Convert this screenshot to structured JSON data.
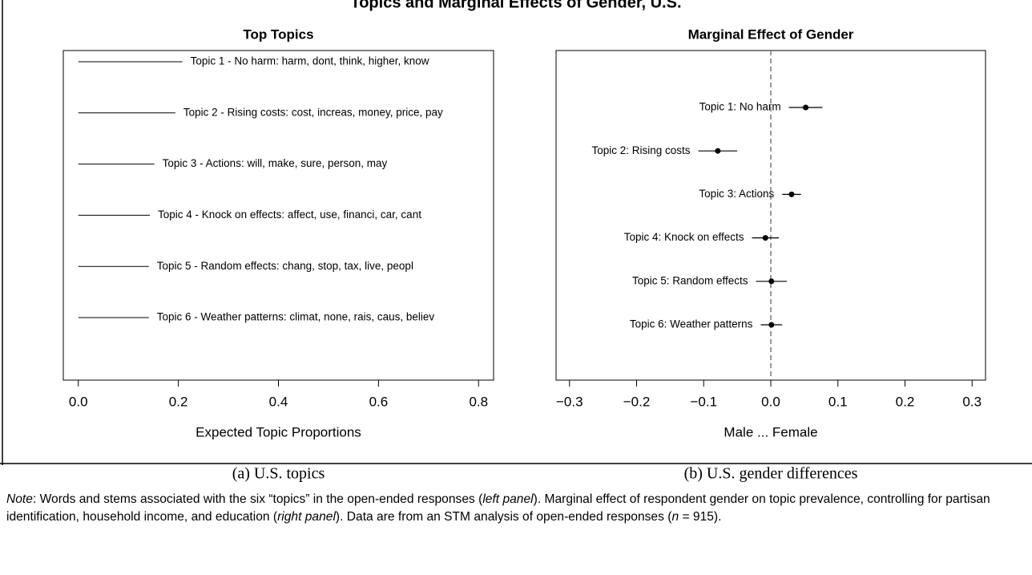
{
  "title": "Topics and Marginal Effects of Gender, U.S.",
  "chart_data": [
    {
      "type": "segment",
      "title": "Top Topics",
      "xlabel": "Expected Topic Proportions",
      "caption": "(a) U.S. topics",
      "categories": [
        "Topic 1 - No harm: harm, dont, think, higher, know",
        "Topic 2 -  Rising costs: cost, increas, money, price, pay",
        "Topic 3 - Actions: will, make, sure, person, may",
        "Topic 4 - Knock on effects: affect, use, financi, car, cant",
        "Topic 5 - Random effects: chang, stop, tax, live, peopl",
        "Topic 6 - Weather patterns: climat, none, rais, caus, believ"
      ],
      "values": [
        0.208,
        0.194,
        0.152,
        0.143,
        0.141,
        0.141
      ],
      "color": "#000000",
      "xlim": [
        -0.03,
        0.83
      ],
      "xticks": [
        {
          "value": 0,
          "label": "0.0"
        },
        0.2,
        0.4,
        0.6,
        0.8
      ]
    },
    {
      "type": "pointrange",
      "title": "Marginal Effect of Gender",
      "xlabel": "Male ... Female",
      "caption": "(b) U.S. gender differences",
      "categories": [
        "Topic 1: No harm",
        "Topic 2: Rising costs",
        "Topic 3: Actions",
        "Topic 4: Knock on effects",
        "Topic 5: Random effects",
        "Topic 6: Weather patterns"
      ],
      "values": [
        0.052,
        -0.079,
        0.031,
        -0.008,
        0.001,
        0.001
      ],
      "errors": [
        0.025,
        0.029,
        0.014,
        0.02,
        0.023,
        0.016
      ],
      "color": "#000000",
      "reference_line": 0,
      "xlim": [
        -0.32,
        0.32
      ],
      "xticks": [
        {
          "value": -0.3,
          "label": "−0.3"
        },
        {
          "value": -0.2,
          "label": "−0.2"
        },
        {
          "value": -0.1,
          "label": "−0.1"
        },
        {
          "value": 0,
          "label": "0.0"
        },
        0.1,
        0.2,
        0.3
      ]
    }
  ],
  "note": [
    {
      "text": "Note",
      "italic": true
    },
    {
      "text": ": Words and stems associated with the six “topics” in the open-ended responses ("
    },
    {
      "text": "left panel",
      "italic": true
    },
    {
      "text": "). Marginal effect of respondent gender on topic prevalence, controlling for partisan identification, household income, and education ("
    },
    {
      "text": "right panel",
      "italic": true
    },
    {
      "text": "). Data are from an STM analysis of open-ended responses ("
    },
    {
      "text": "n",
      "italic": true
    },
    {
      "text": " = 915)."
    }
  ]
}
